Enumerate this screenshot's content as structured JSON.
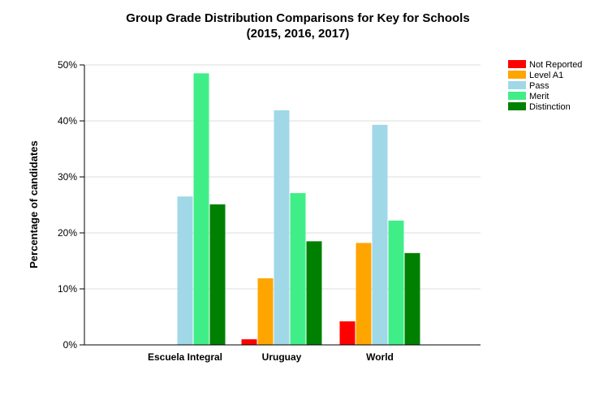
{
  "chart_data": {
    "type": "bar",
    "title": "Group Grade Distribution Comparisons for Key for Schools",
    "subtitle": "(2015, 2016, 2017)",
    "xlabel": "",
    "ylabel": "Percentage of candidates",
    "ylim": [
      0,
      50
    ],
    "yticks": [
      "0%",
      "10%",
      "20%",
      "30%",
      "40%",
      "50%"
    ],
    "categories": [
      "Escuela Integral",
      "Uruguay",
      "World"
    ],
    "legend_position": "top-right",
    "grid": true,
    "series": [
      {
        "name": "Not Reported",
        "color": "#ff0000",
        "values": [
          0,
          1.0,
          4.2
        ]
      },
      {
        "name": "Level A1",
        "color": "#ffa500",
        "values": [
          0,
          11.9,
          18.2
        ]
      },
      {
        "name": "Pass",
        "color": "#a0d8e8",
        "values": [
          26.5,
          41.9,
          39.3
        ]
      },
      {
        "name": "Merit",
        "color": "#40ee88",
        "values": [
          48.5,
          27.1,
          22.2
        ]
      },
      {
        "name": "Distinction",
        "color": "#008000",
        "values": [
          25.1,
          18.5,
          16.4
        ]
      }
    ]
  }
}
